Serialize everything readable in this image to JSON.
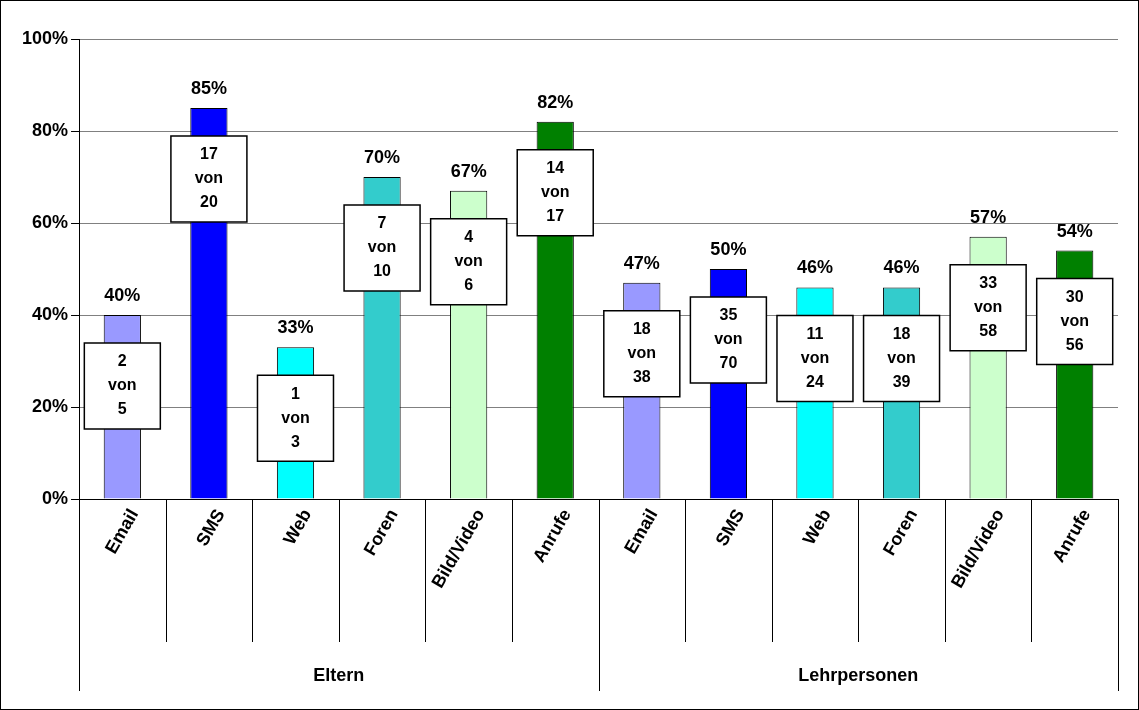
{
  "chart_data": {
    "type": "bar",
    "categories": [
      "Email",
      "SMS",
      "Web",
      "Foren",
      "Bild/Video",
      "Anrufe",
      "Email",
      "SMS",
      "Web",
      "Foren",
      "Bild/Video",
      "Anrufe"
    ],
    "values": [
      40,
      85,
      33,
      70,
      67,
      82,
      47,
      50,
      46,
      46,
      57,
      54
    ],
    "colors": [
      "#9999ff",
      "#0000ff",
      "#00ffff",
      "#33cccc",
      "#ccffcc",
      "#008000",
      "#9999ff",
      "#0000ff",
      "#00ffff",
      "#33cccc",
      "#ccffcc",
      "#008000"
    ],
    "value_labels": [
      "40%",
      "85%",
      "33%",
      "70%",
      "67%",
      "82%",
      "47%",
      "50%",
      "46%",
      "46%",
      "57%",
      "54%"
    ],
    "annotations": [
      "2 von 5",
      "17 von 20",
      "1 von 3",
      "7 von 10",
      "4 von 6",
      "14 von 17",
      "18 von 38",
      "35 von 70",
      "11 von 24",
      "18 von 39",
      "33 von 58",
      "30 von 56",
      "Eltern",
      "Lehrpersonen"
    ],
    "ylim": [
      0,
      100
    ],
    "yticks": [
      {
        "value": 0,
        "label": "0%"
      },
      {
        "value": 20,
        "label": "20%"
      },
      {
        "value": 40,
        "label": "40%"
      },
      {
        "value": 60,
        "label": "60%"
      },
      {
        "value": 80,
        "label": "80%"
      },
      {
        "value": 100,
        "label": "100%"
      }
    ],
    "grid": "y"
  }
}
